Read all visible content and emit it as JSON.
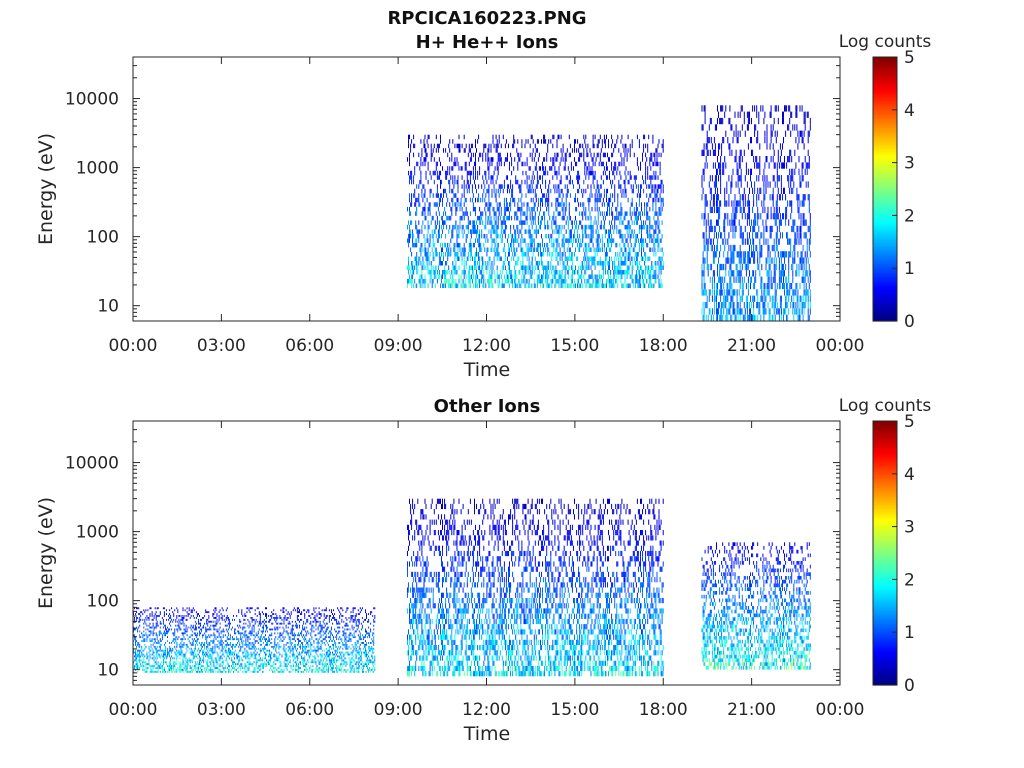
{
  "figure": {
    "title": "RPCICA160223.PNG"
  },
  "chart_data": [
    {
      "type": "heatmap",
      "title": "H+ He++ Ions",
      "xlabel": "Time",
      "ylabel": "Energy (eV)",
      "x_ticks": [
        "00:00",
        "03:00",
        "06:00",
        "09:00",
        "12:00",
        "15:00",
        "18:00",
        "21:00",
        "00:00"
      ],
      "x_range_hours": [
        0,
        24
      ],
      "y_scale": "log",
      "y_range_eV": [
        6,
        40000
      ],
      "y_ticks": [
        "10",
        "100",
        "1000",
        "10000"
      ],
      "y_tick_values": [
        10,
        100,
        1000,
        10000
      ],
      "colorbar": {
        "title": "Log counts",
        "ticks": [
          "0",
          "1",
          "2",
          "3",
          "4",
          "5"
        ],
        "range": [
          0,
          5
        ],
        "colormap": "jet"
      },
      "data_segments": [
        {
          "start_hour": 9.3,
          "end_hour": 18.0,
          "energy_eV": [
            18,
            3000
          ],
          "typical_log_counts": [
            0.3,
            2.5
          ]
        },
        {
          "start_hour": 19.3,
          "end_hour": 23.0,
          "energy_eV": [
            6,
            8000
          ],
          "typical_log_counts": [
            0.3,
            2.0
          ]
        }
      ]
    },
    {
      "type": "heatmap",
      "title": "Other Ions",
      "xlabel": "Time",
      "ylabel": "Energy (eV)",
      "x_ticks": [
        "00:00",
        "03:00",
        "06:00",
        "09:00",
        "12:00",
        "15:00",
        "18:00",
        "21:00",
        "00:00"
      ],
      "x_range_hours": [
        0,
        24
      ],
      "y_scale": "log",
      "y_range_eV": [
        6,
        40000
      ],
      "y_ticks": [
        "10",
        "100",
        "1000",
        "10000"
      ],
      "y_tick_values": [
        10,
        100,
        1000,
        10000
      ],
      "colorbar": {
        "title": "Log counts",
        "ticks": [
          "0",
          "1",
          "2",
          "3",
          "4",
          "5"
        ],
        "range": [
          0,
          5
        ],
        "colormap": "jet"
      },
      "data_segments": [
        {
          "start_hour": 0.0,
          "end_hour": 8.2,
          "energy_eV": [
            9,
            80
          ],
          "typical_log_counts": [
            0.5,
            2.6
          ]
        },
        {
          "start_hour": 9.3,
          "end_hour": 18.0,
          "energy_eV": [
            8,
            3000
          ],
          "typical_log_counts": [
            0.3,
            2.5
          ]
        },
        {
          "start_hour": 19.3,
          "end_hour": 23.0,
          "energy_eV": [
            10,
            700
          ],
          "typical_log_counts": [
            0.5,
            2.8
          ]
        }
      ]
    }
  ]
}
